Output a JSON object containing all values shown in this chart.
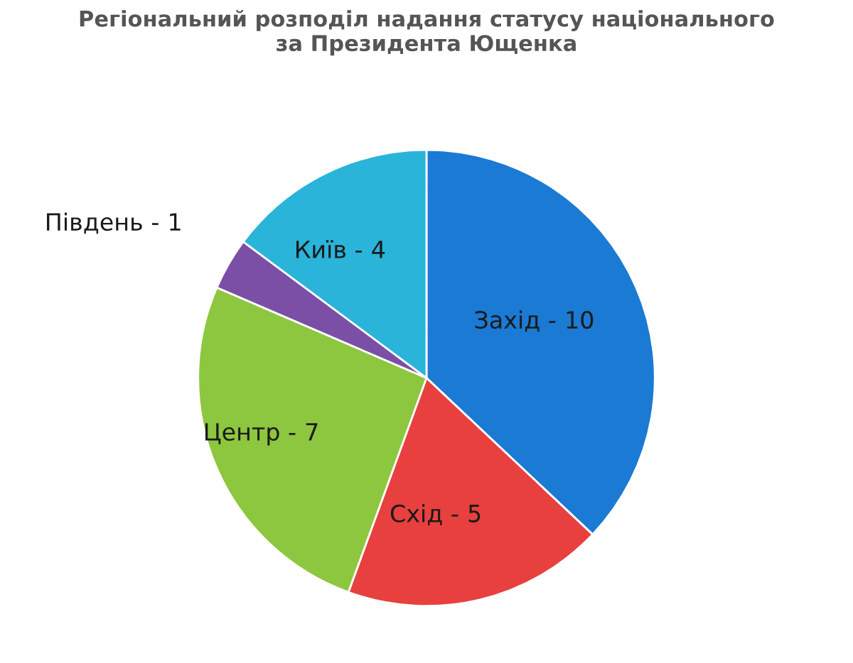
{
  "chart_data": {
    "type": "pie",
    "title": "Регіональний розподіл надання статусу національного\nза Президента Ющенка",
    "categories": [
      "Захід -",
      "Схід -",
      "Центр -",
      "Південь -",
      "Київ -"
    ],
    "values": [
      10,
      5,
      7,
      1,
      4
    ],
    "colors": [
      "#1a7ad4",
      "#e8403f",
      "#8dc63f",
      "#7b4fa6",
      "#2ab4d9"
    ],
    "data_labels": true
  }
}
